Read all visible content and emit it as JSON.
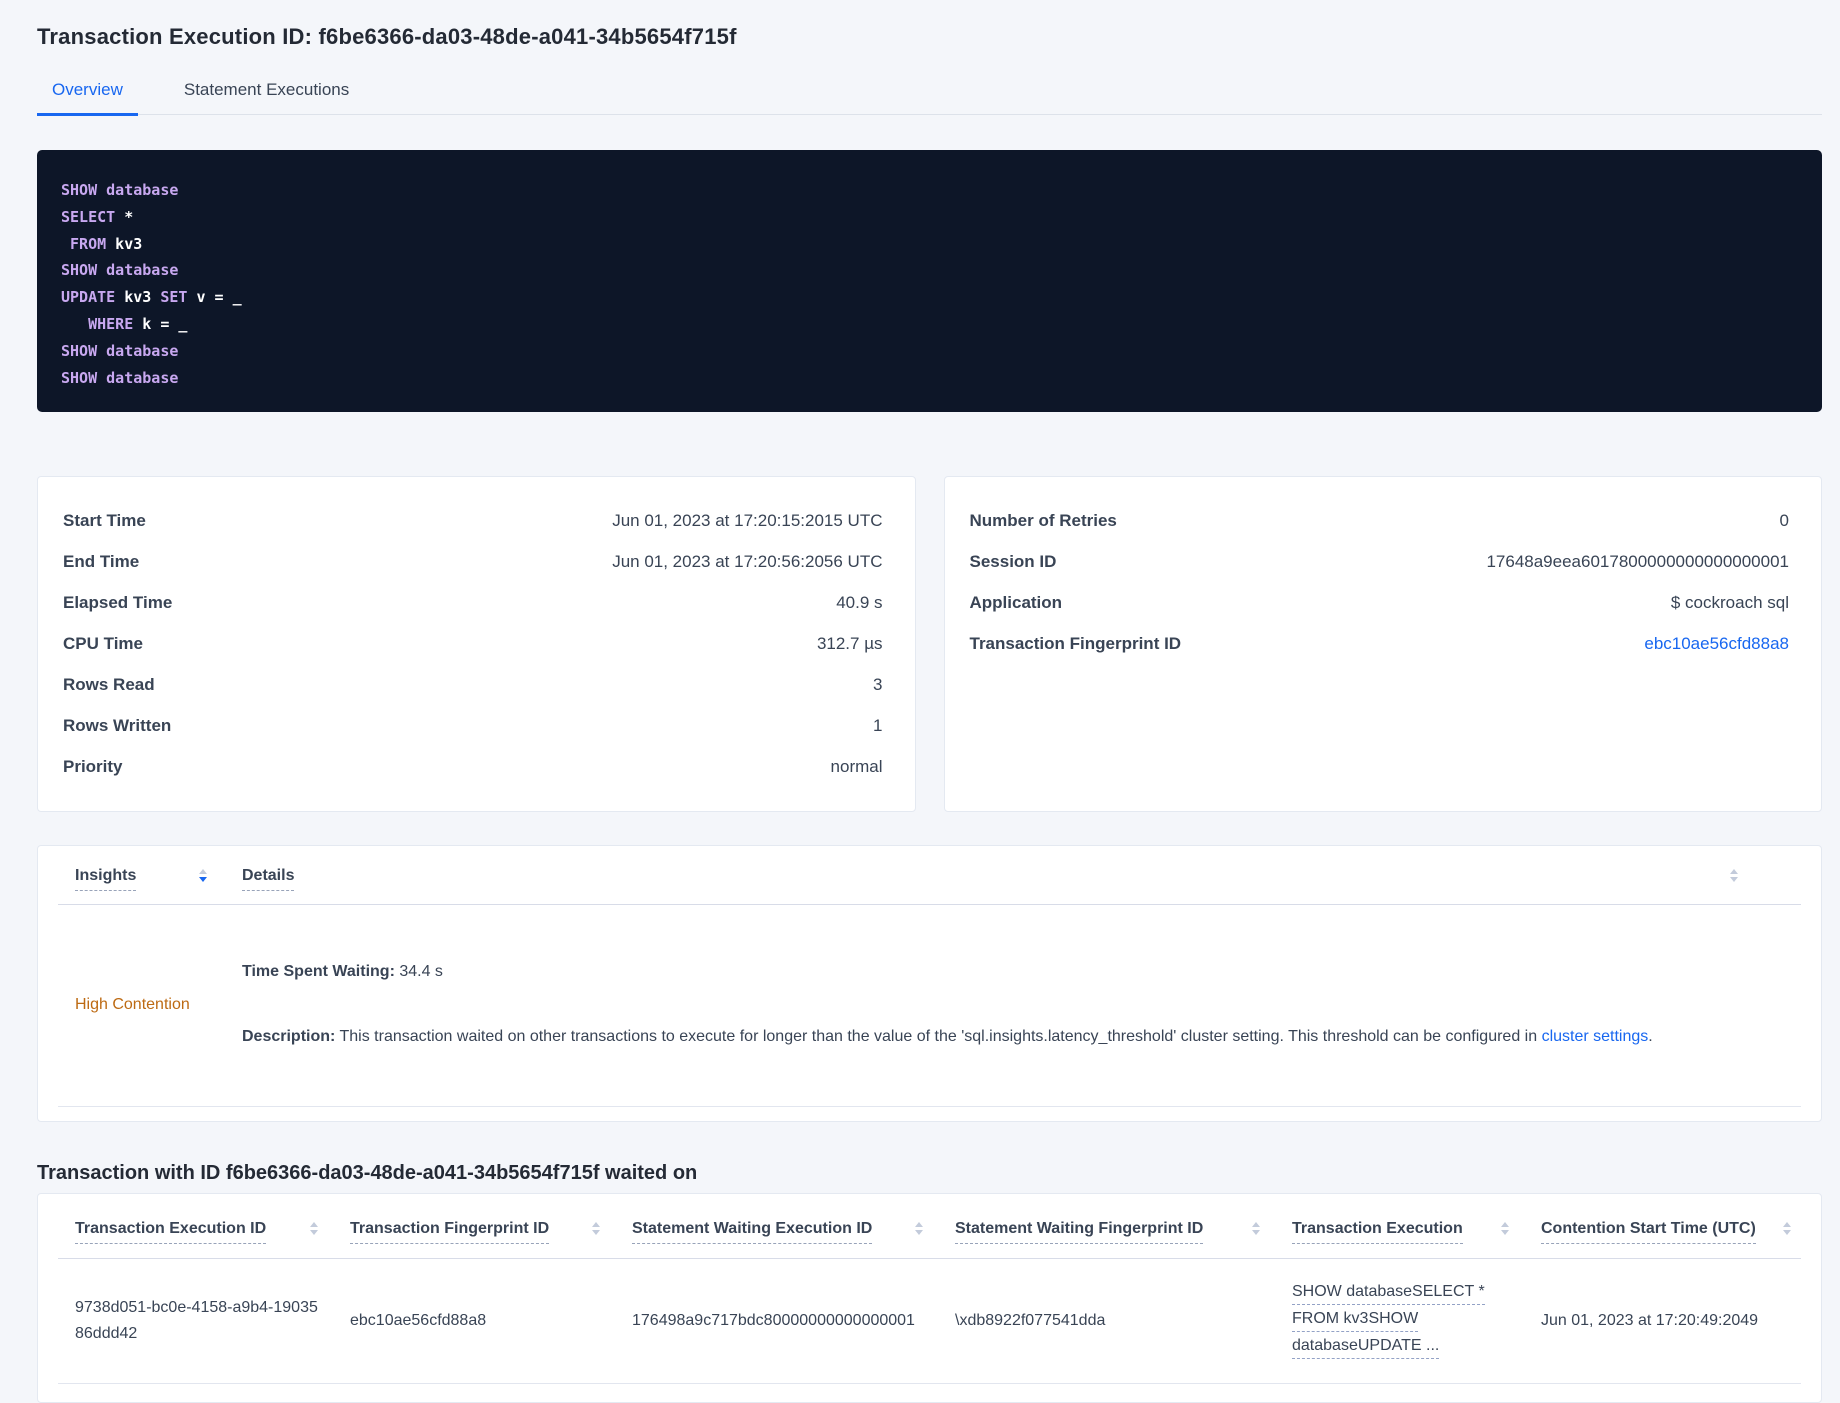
{
  "colors": {
    "accent-blue": "#1867f0",
    "contention-orange": "#bd6a13",
    "code-bg": "#0d1628",
    "code-keyword": "#c8a8f0",
    "code-plain": "#ffffff",
    "text-dark": "#242a35",
    "text-body": "#394455",
    "page-bg": "#f4f6fa"
  },
  "header": {
    "title": "Transaction Execution ID: f6be6366-da03-48de-a041-34b5654f715f",
    "tabs": [
      {
        "label": "Overview"
      },
      {
        "label": "Statement Executions"
      }
    ]
  },
  "sql": {
    "lines": [
      {
        "kw": "SHOW database"
      },
      {
        "kw": "SELECT",
        "plain": " *"
      },
      {
        "kw": " FROM",
        "plain": " kv3"
      },
      {
        "kw": "SHOW database"
      },
      {
        "kw": "UPDATE",
        "plain": " kv3 ",
        "kw2": "SET",
        "plain2": " v = _"
      },
      {
        "kw": "   WHERE",
        "plain": " k = _"
      },
      {
        "kw": "SHOW database"
      },
      {
        "kw": "SHOW database"
      }
    ]
  },
  "details_left": {
    "rows": [
      {
        "label": "Start Time",
        "value": "Jun 01, 2023 at 17:20:15:2015 UTC"
      },
      {
        "label": "End Time",
        "value": "Jun 01, 2023 at 17:20:56:2056 UTC"
      },
      {
        "label": "Elapsed Time",
        "value": "40.9 s"
      },
      {
        "label": "CPU Time",
        "value": "312.7 µs"
      },
      {
        "label": "Rows Read",
        "value": "3"
      },
      {
        "label": "Rows Written",
        "value": "1"
      },
      {
        "label": "Priority",
        "value": "normal"
      }
    ]
  },
  "details_right": {
    "rows": [
      {
        "label": "Number of Retries",
        "value": "0"
      },
      {
        "label": "Session ID",
        "value": "17648a9eea6017800000000000000001"
      },
      {
        "label": "Application",
        "value": "$ cockroach sql"
      },
      {
        "label": "Transaction Fingerprint ID",
        "value": "ebc10ae56cfd88a8"
      }
    ]
  },
  "insights": {
    "columns": {
      "insights": "Insights",
      "details": "Details"
    },
    "row": {
      "name": "High Contention",
      "waiting_label": "Time Spent Waiting:",
      "waiting_value": " 34.4 s",
      "description_label": "Description:",
      "description_text": " This transaction waited on other transactions to execute for longer than the value of the 'sql.insights.latency_threshold' cluster setting. This threshold can be configured in ",
      "description_link": "cluster settings",
      "description_suffix": "."
    }
  },
  "waited": {
    "title": "Transaction with ID f6be6366-da03-48de-a041-34b5654f715f waited on",
    "columns": [
      "Transaction Execution ID",
      "Transaction Fingerprint ID",
      "Statement Waiting Execution ID",
      "Statement Waiting Fingerprint ID",
      "Transaction Execution",
      "Contention Start Time (UTC)"
    ],
    "row": {
      "transaction_execution_id": "9738d051-bc0e-4158-a9b4-1903586ddd42",
      "transaction_fingerprint_id": "ebc10ae56cfd88a8",
      "statement_waiting_execution_id": "176498a9c717bdc80000000000000001",
      "statement_waiting_fingerprint_id": "\\xdb8922f077541dda",
      "transaction_execution_lines": [
        "SHOW databaseSELECT *",
        "FROM kv3SHOW",
        "databaseUPDATE ..."
      ],
      "contention_start_time": "Jun 01, 2023 at 17:20:49:2049"
    }
  }
}
